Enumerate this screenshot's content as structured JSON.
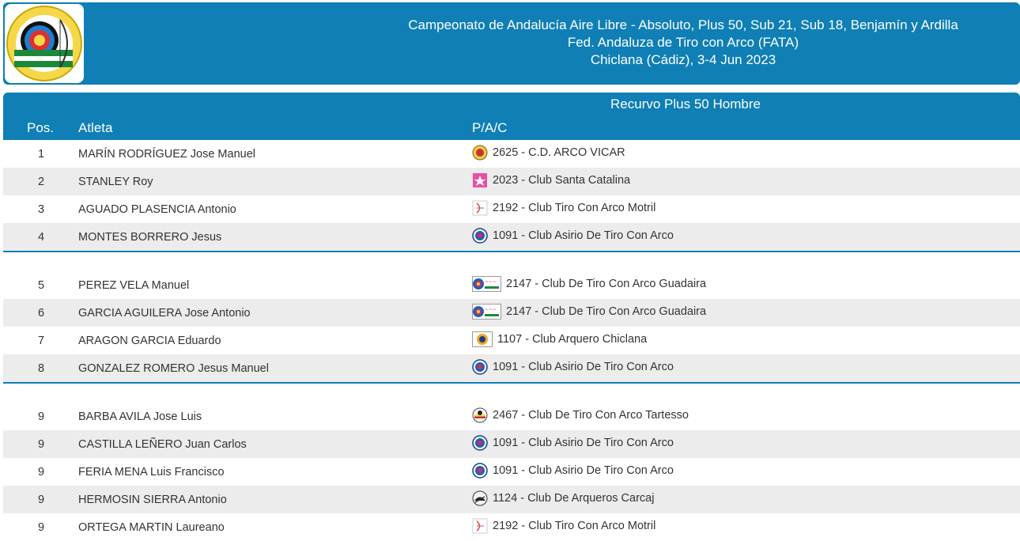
{
  "header": {
    "line1": "Campeonato de Andalucía Aire Libre - Absoluto, Plus 50, Sub 21, Sub 18, Benjamín y Ardilla",
    "line2": "Fed. Andaluza de Tiro con Arco (FATA)",
    "line3": "Chiclana (Cádiz), 3-4 Jun 2023",
    "logo_icon": "archery-federation-logo"
  },
  "table": {
    "category": "Recurvo Plus 50 Hombre",
    "col_pos": "Pos.",
    "col_athlete": "Atleta",
    "col_club": "P/A/C",
    "groups": [
      [
        {
          "pos": "1",
          "athlete": "MARÍN RODRÍGUEZ Jose Manuel",
          "club": "2625 - C.D. ARCO VICAR",
          "icon": "vicar-logo-icon"
        },
        {
          "pos": "2",
          "athlete": "STANLEY Roy",
          "club": "2023 - Club Santa Catalina",
          "icon": "santa-catalina-logo-icon"
        },
        {
          "pos": "3",
          "athlete": "AGUADO PLASENCIA Antonio",
          "club": "2192 - Club Tiro Con Arco Motril",
          "icon": "motril-logo-icon"
        },
        {
          "pos": "4",
          "athlete": "MONTES BORRERO Jesus",
          "club": "1091 - Club Asirio De Tiro Con Arco",
          "icon": "asirio-logo-icon"
        }
      ],
      [
        {
          "pos": "5",
          "athlete": "PEREZ VELA Manuel",
          "club": "2147 - Club De Tiro Con Arco Guadaira",
          "icon": "guadaira-logo-icon"
        },
        {
          "pos": "6",
          "athlete": "GARCIA AGUILERA Jose Antonio",
          "club": "2147 - Club De Tiro Con Arco Guadaira",
          "icon": "guadaira-logo-icon"
        },
        {
          "pos": "7",
          "athlete": "ARAGON GARCIA Eduardo",
          "club": "1107 - Club Arquero Chiclana",
          "icon": "chiclana-logo-icon"
        },
        {
          "pos": "8",
          "athlete": "GONZALEZ ROMERO Jesus Manuel",
          "club": "1091 - Club Asirio De Tiro Con Arco",
          "icon": "asirio-logo-icon"
        }
      ],
      [
        {
          "pos": "9",
          "athlete": "BARBA AVILA Jose Luis",
          "club": "2467 - Club De Tiro Con Arco Tartesso",
          "icon": "tartesso-logo-icon"
        },
        {
          "pos": "9",
          "athlete": "CASTILLA LEÑERO Juan Carlos",
          "club": "1091 - Club Asirio De Tiro Con Arco",
          "icon": "asirio-logo-icon"
        },
        {
          "pos": "9",
          "athlete": "FERIA MENA Luis Francisco",
          "club": "1091 - Club Asirio De Tiro Con Arco",
          "icon": "asirio-logo-icon"
        },
        {
          "pos": "9",
          "athlete": "HERMOSIN SIERRA Antonio",
          "club": "1124 - Club De Arqueros Carcaj",
          "icon": "carcaj-logo-icon"
        },
        {
          "pos": "9",
          "athlete": "ORTEGA MARTIN Laureano",
          "club": "2192 - Club Tiro Con Arco Motril",
          "icon": "motril-logo-icon"
        }
      ]
    ]
  },
  "colors": {
    "header_bg": "#0f7fb5",
    "alt_row": "#ececec"
  }
}
